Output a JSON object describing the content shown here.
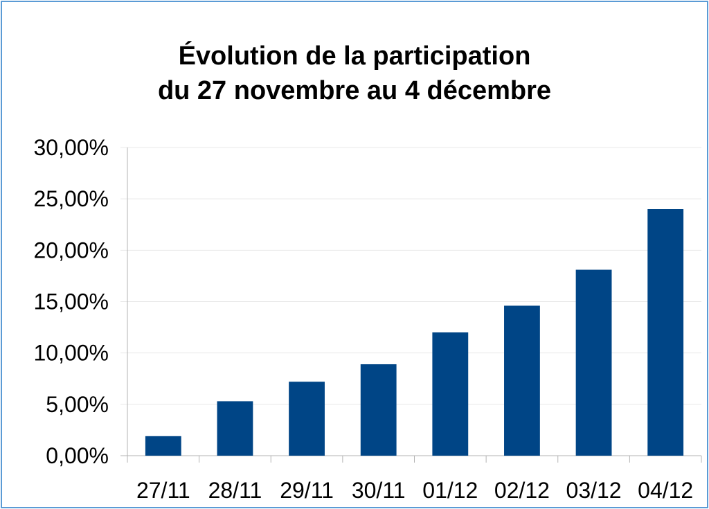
{
  "colors": {
    "bar": "#004586",
    "grid": "#e8e8e8",
    "axis": "#b3b3b3",
    "border": "#5b9bd5"
  },
  "chart_data": {
    "type": "bar",
    "title_line1": "Évolution de la participation",
    "title_line2": "du 27 novembre au 4 décembre",
    "categories": [
      "27/11",
      "28/11",
      "29/11",
      "30/11",
      "01/12",
      "02/12",
      "03/12",
      "04/12"
    ],
    "values": [
      1.9,
      5.3,
      7.2,
      8.9,
      12.0,
      14.6,
      18.1,
      24.0
    ],
    "ylim": [
      0,
      30
    ],
    "ytick_values": [
      0,
      5,
      10,
      15,
      20,
      25,
      30
    ],
    "ytick_labels": [
      "0,00%",
      "5,00%",
      "10,00%",
      "15,00%",
      "20,00%",
      "25,00%",
      "30,00%"
    ],
    "grid": true,
    "legend": "none"
  }
}
